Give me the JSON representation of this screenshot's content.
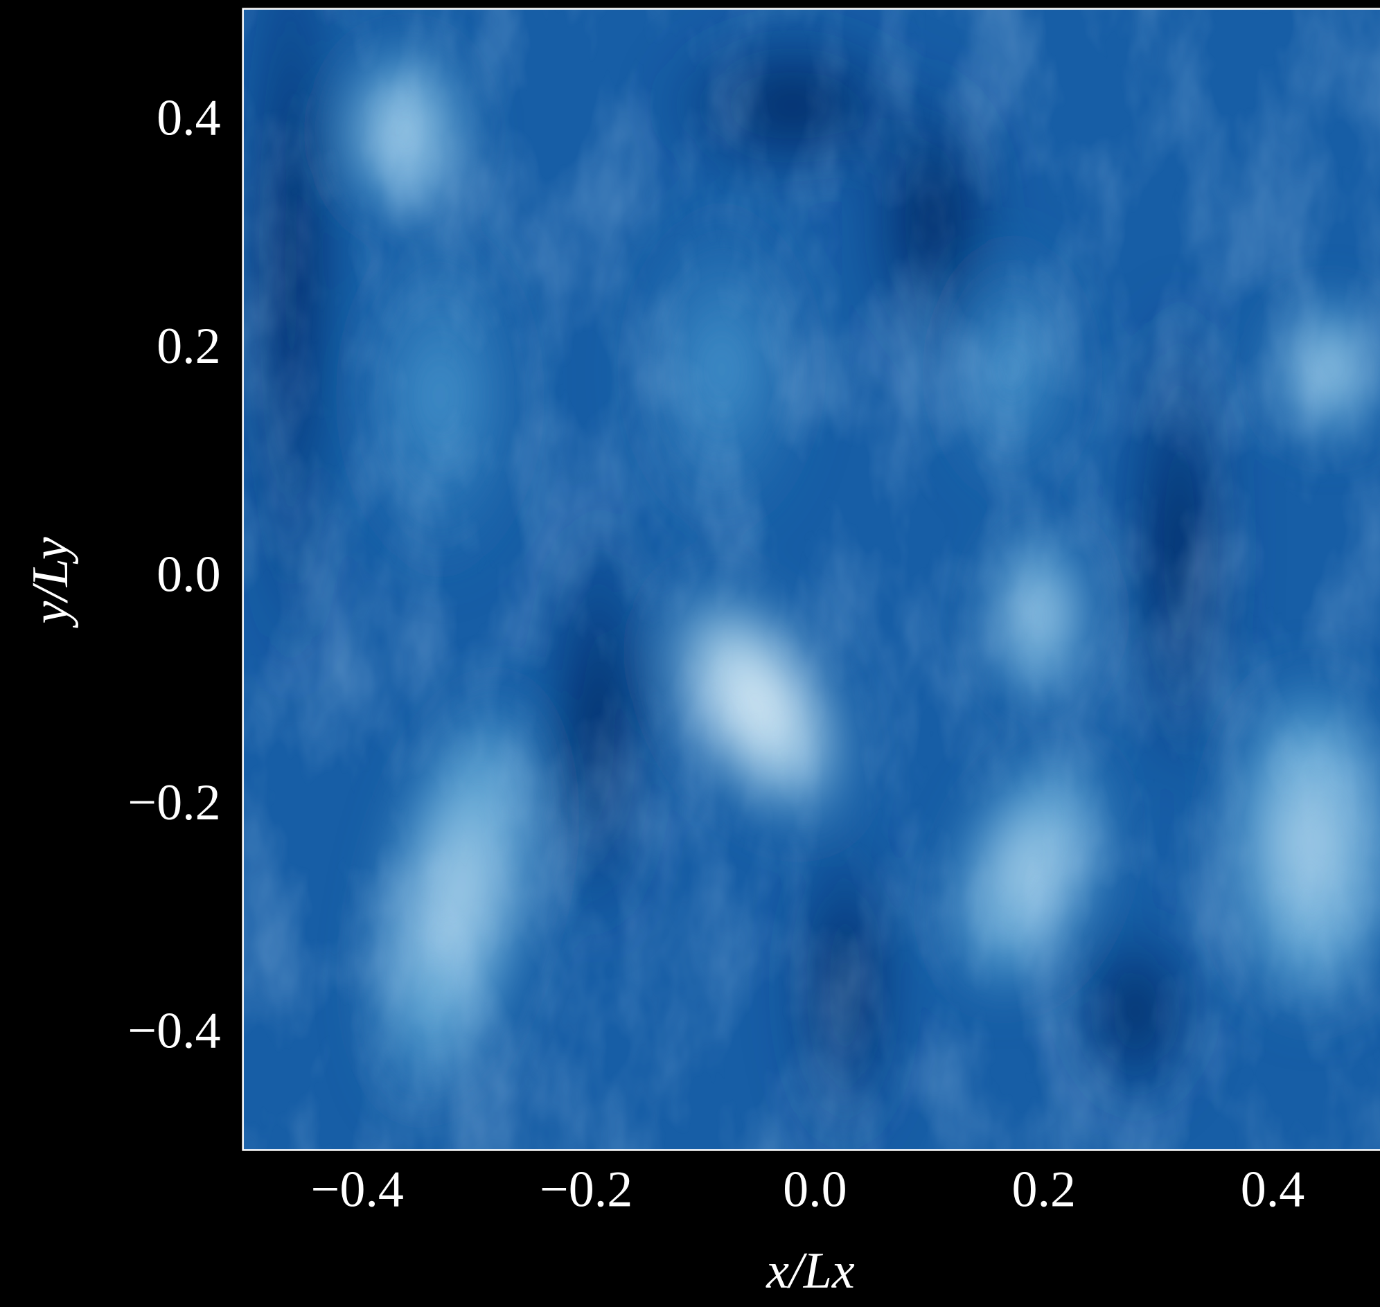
{
  "chart_data": {
    "type": "heatmap",
    "xlabel": "x/Lx",
    "ylabel": "y/Ly",
    "xlim": [
      -0.5,
      0.5
    ],
    "ylim": [
      -0.5,
      0.5
    ],
    "xticks": [
      {
        "value": -0.4,
        "label": "−0.4"
      },
      {
        "value": -0.2,
        "label": "−0.2"
      },
      {
        "value": 0,
        "label": "0.0"
      },
      0.2,
      0.4
    ],
    "yticks": [
      {
        "value": -0.4,
        "label": "−0.4"
      },
      {
        "value": -0.2,
        "label": "−0.2"
      },
      {
        "value": 0,
        "label": "0.0"
      },
      0.2,
      0.4
    ]
  }
}
